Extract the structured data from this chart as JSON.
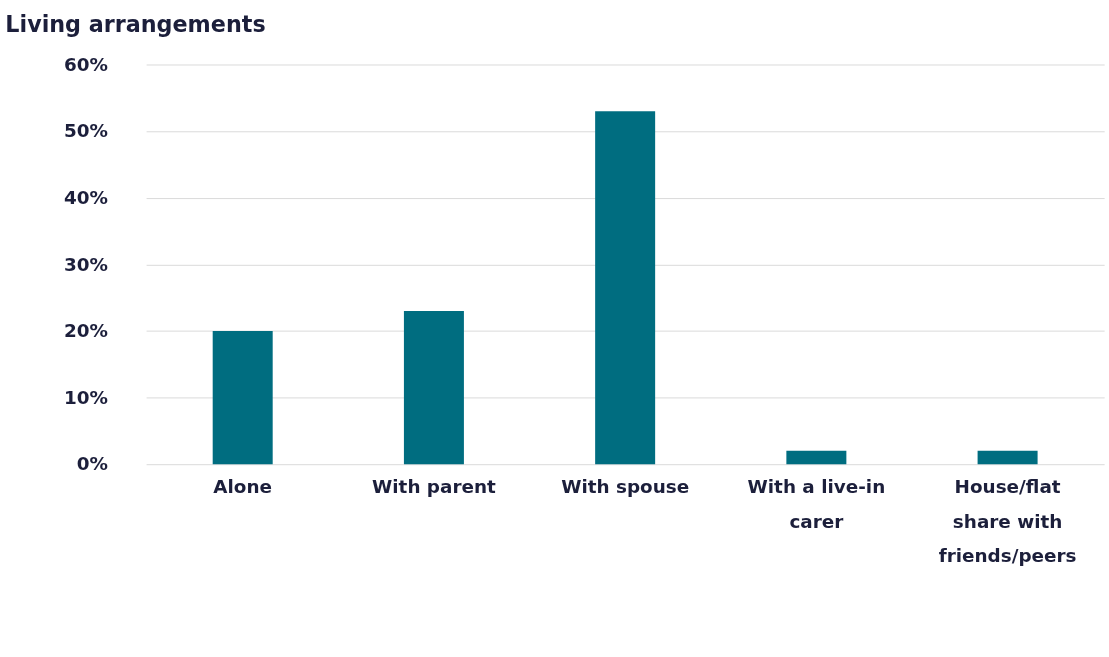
{
  "chart_data": {
    "type": "bar",
    "title": "Living arrangements",
    "categories": [
      "Alone",
      "With parent",
      "With spouse",
      "With a live-in carer",
      "House/flat share with friends/peers"
    ],
    "values": [
      20,
      23,
      53,
      2,
      2
    ],
    "color": "#006d80",
    "ylim": [
      0,
      60
    ],
    "yticks": [
      {
        "value": 0,
        "label": "0%"
      },
      {
        "value": 10,
        "label": "10%"
      },
      {
        "value": 20,
        "label": "20%"
      },
      {
        "value": 30,
        "label": "30%"
      },
      {
        "value": 40,
        "label": "40%"
      },
      {
        "value": 50,
        "label": "50%"
      },
      {
        "value": 60,
        "label": "60%"
      }
    ],
    "grid": "y",
    "legend": false
  }
}
